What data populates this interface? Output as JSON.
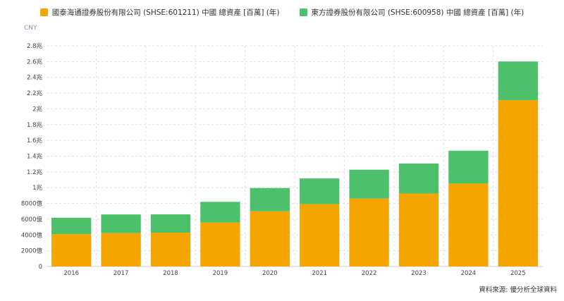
{
  "legend": {
    "series_a": "國泰海通證券股份有限公司 (SHSE:601211) 中國 總資產 [百萬] (年)",
    "series_b": "東方證券股份有限公司 (SHSE:600958) 中國 總資產 [百萬] (年)"
  },
  "unit_label": "CNY",
  "source": "資料來源: 優分析全球資料",
  "colors": {
    "series_a": "#f5a500",
    "series_b": "#4cc06a",
    "grid": "#dde1e6"
  },
  "chart_data": {
    "type": "bar",
    "stacked": true,
    "categories": [
      "2016",
      "2017",
      "2018",
      "2019",
      "2020",
      "2021",
      "2022",
      "2023",
      "2024",
      "2025"
    ],
    "series": [
      {
        "name": "國泰海通證券股份有限公司 (SHSE:601211) 中國 總資產 [百萬] (年)",
        "values": [
          4100,
          4230,
          4290,
          5580,
          7000,
          7920,
          8620,
          9260,
          10520,
          21100
        ]
      },
      {
        "name": "東方證券股份有限公司 (SHSE:600958) 中國 總資產 [百萬] (年)",
        "values": [
          2080,
          2370,
          2320,
          2620,
          2950,
          3250,
          3660,
          3800,
          4170,
          4910
        ]
      }
    ],
    "y_ticks": [
      {
        "value": 0,
        "label": "0"
      },
      {
        "value": 2000,
        "label": "2000億"
      },
      {
        "value": 4000,
        "label": "4000億"
      },
      {
        "value": 6000,
        "label": "6000億"
      },
      {
        "value": 8000,
        "label": "8000億"
      },
      {
        "value": 10000,
        "label": "1兆"
      },
      {
        "value": 12000,
        "label": "1.2兆"
      },
      {
        "value": 14000,
        "label": "1.4兆"
      },
      {
        "value": 16000,
        "label": "1.6兆"
      },
      {
        "value": 18000,
        "label": "1.8兆"
      },
      {
        "value": 20000,
        "label": "2兆"
      },
      {
        "value": 22000,
        "label": "2.2兆"
      },
      {
        "value": 24000,
        "label": "2.4兆"
      },
      {
        "value": 26000,
        "label": "2.6兆"
      },
      {
        "value": 28000,
        "label": "2.8兆"
      }
    ],
    "ylim": [
      0,
      28000
    ],
    "grid": true,
    "legend_position": "top"
  }
}
